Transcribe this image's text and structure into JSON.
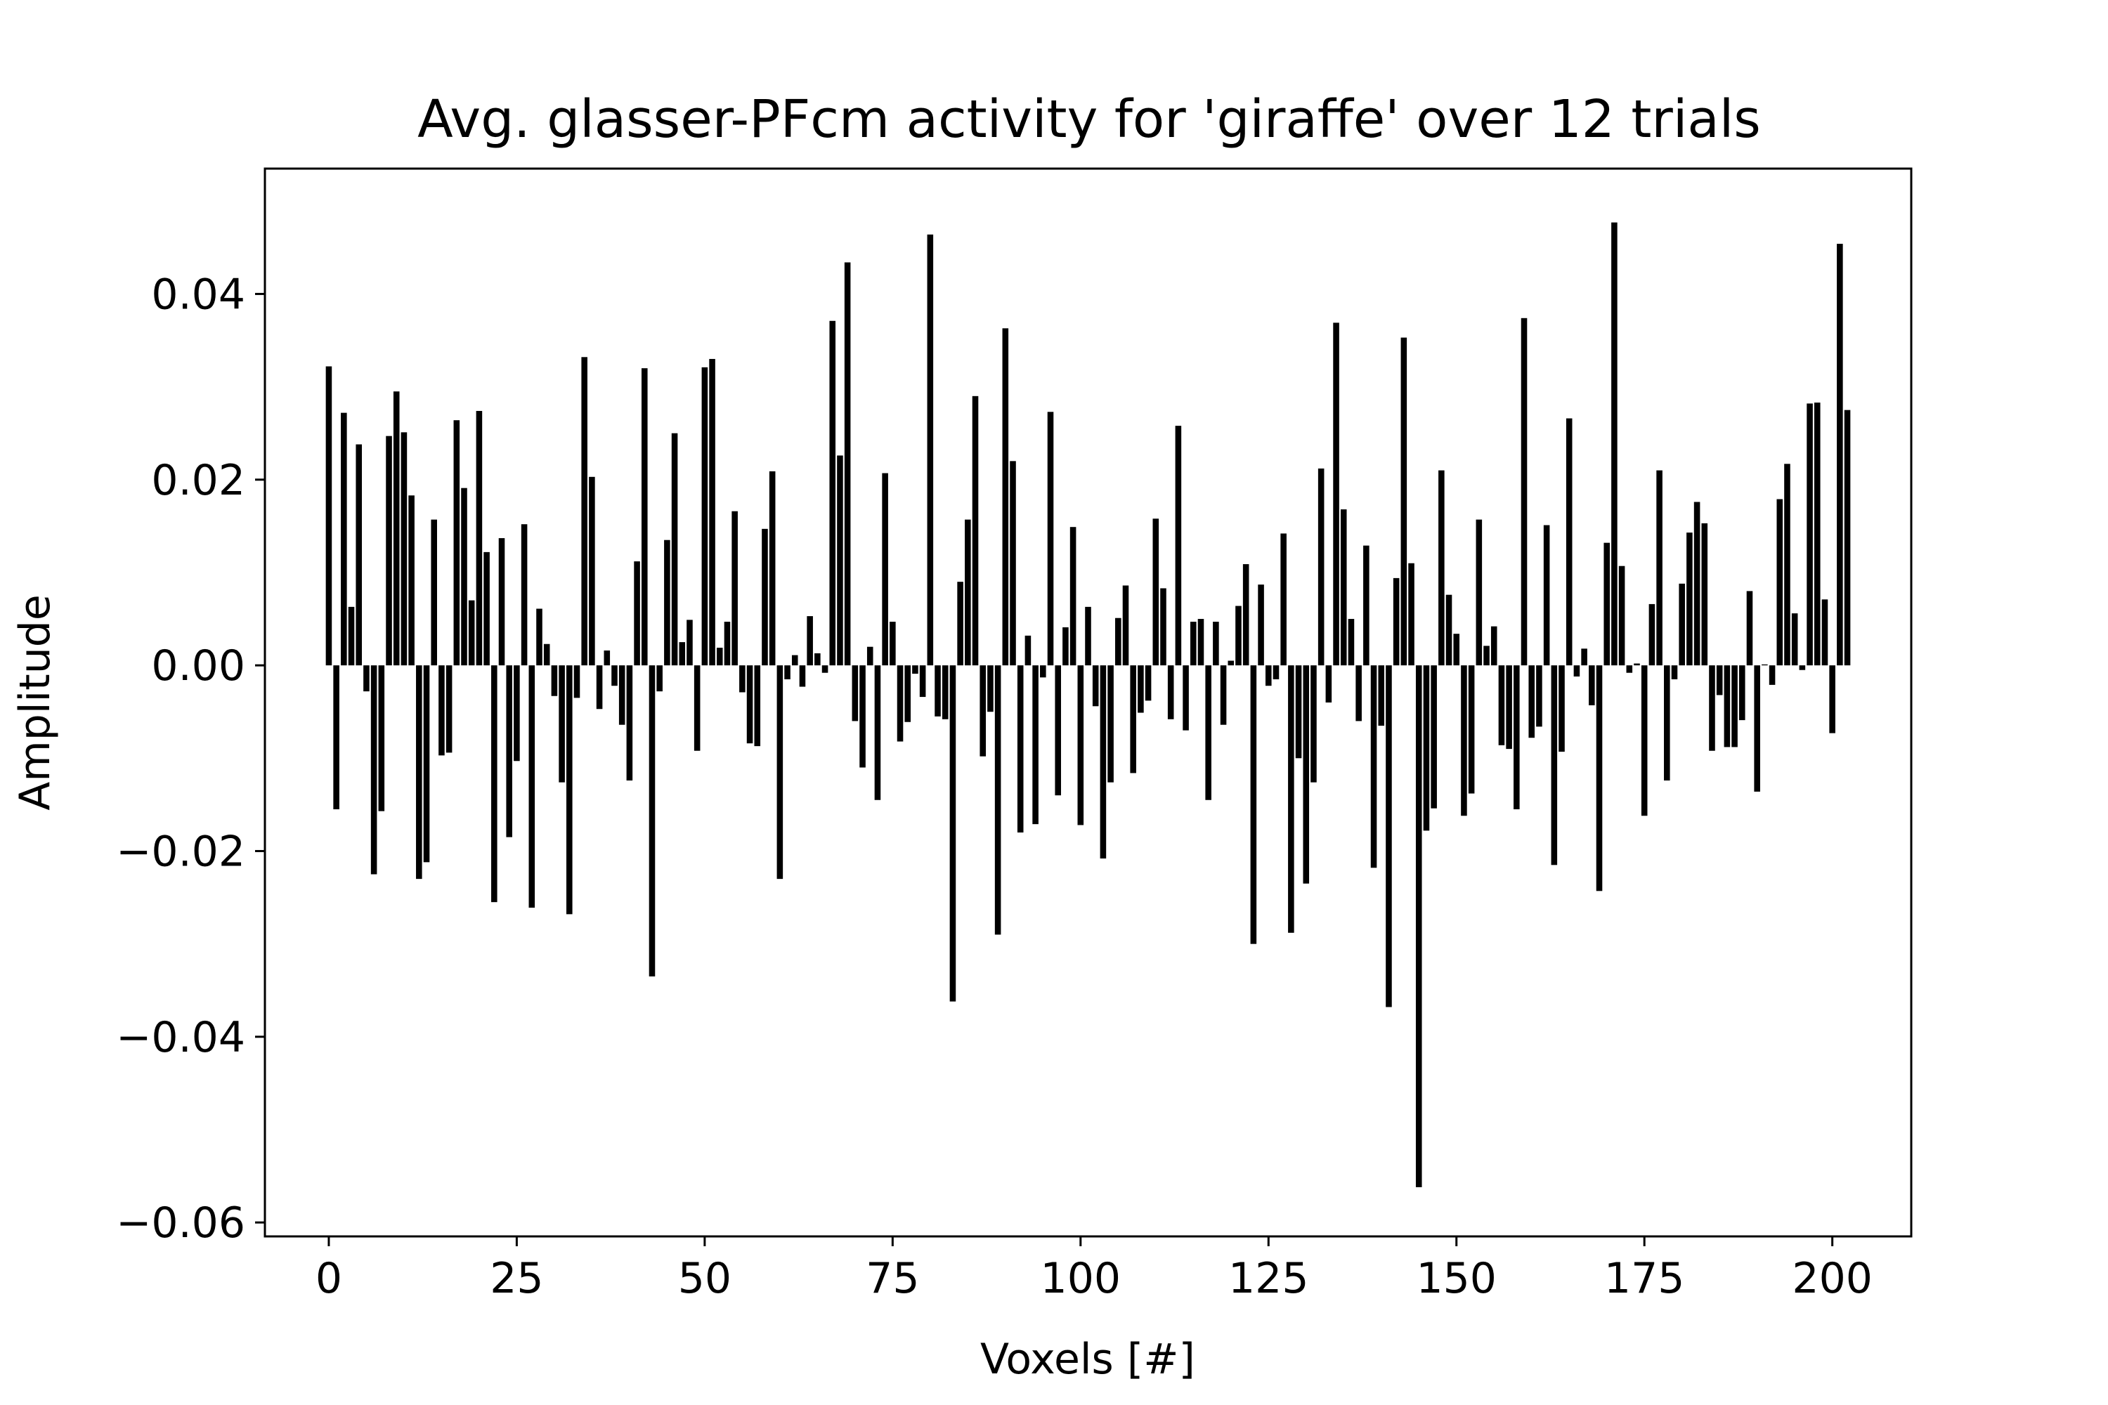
{
  "chart_data": {
    "type": "bar",
    "title": "Avg. glasser-PFcm activity for 'giraffe' over 12 trials",
    "xlabel": "Voxels [#]",
    "ylabel": "Amplitude",
    "xlim": [
      -8.5,
      210.5
    ],
    "ylim": [
      -0.0615,
      0.0535
    ],
    "x_ticks": [
      0,
      25,
      50,
      75,
      100,
      125,
      150,
      175,
      200
    ],
    "x_tick_labels": [
      "0",
      "25",
      "50",
      "75",
      "100",
      "125",
      "150",
      "175",
      "200"
    ],
    "y_ticks": [
      -0.06,
      -0.04,
      -0.02,
      0.0,
      0.02,
      0.04
    ],
    "y_tick_labels": [
      "−0.06",
      "−0.04",
      "−0.02",
      "0.00",
      "0.02",
      "0.04"
    ],
    "grid": false,
    "bar_color": "#000000",
    "values": [
      0.0322,
      -0.0155,
      0.0272,
      0.0063,
      0.0238,
      -0.0028,
      -0.0225,
      -0.0157,
      0.0247,
      0.0295,
      0.0251,
      0.0183,
      -0.023,
      -0.0212,
      0.0157,
      -0.0097,
      -0.0094,
      0.0264,
      0.0191,
      0.007,
      0.0274,
      0.0122,
      -0.0255,
      0.0137,
      -0.0185,
      -0.0103,
      0.0152,
      -0.0261,
      0.0061,
      0.0023,
      -0.0033,
      -0.0126,
      -0.0268,
      -0.0035,
      0.0332,
      0.0203,
      -0.0047,
      0.0016,
      -0.0022,
      -0.0064,
      -0.0124,
      0.0112,
      0.032,
      -0.0335,
      -0.0028,
      0.0135,
      0.025,
      0.0025,
      0.0049,
      -0.0092,
      0.0321,
      0.033,
      0.0019,
      0.0047,
      0.0166,
      -0.0029,
      -0.0084,
      -0.0087,
      0.0147,
      0.0209,
      -0.023,
      -0.0015,
      0.0011,
      -0.0023,
      0.0053,
      0.0013,
      -0.0008,
      0.0371,
      0.0226,
      0.0434,
      -0.006,
      -0.011,
      0.002,
      -0.0145,
      0.0207,
      0.0047,
      -0.0082,
      -0.0061,
      -0.0009,
      -0.0034,
      0.0464,
      -0.0055,
      -0.0058,
      -0.0362,
      0.009,
      0.0157,
      0.029,
      -0.0098,
      -0.005,
      -0.029,
      0.0363,
      0.022,
      -0.018,
      0.0032,
      -0.0171,
      -0.0013,
      0.0273,
      -0.014,
      0.0041,
      0.0149,
      -0.0172,
      0.0063,
      -0.0044,
      -0.0208,
      -0.0126,
      0.0051,
      0.0086,
      -0.0116,
      -0.0051,
      -0.0038,
      0.0158,
      0.0083,
      -0.0058,
      0.0258,
      -0.007,
      0.0047,
      0.005,
      -0.0145,
      0.0047,
      -0.0064,
      0.0005,
      0.0064,
      0.0109,
      -0.03,
      0.0087,
      -0.0022,
      -0.0015,
      0.0142,
      -0.0288,
      -0.01,
      -0.0235,
      -0.0126,
      0.0212,
      -0.004,
      0.0369,
      0.0168,
      0.005,
      -0.006,
      0.0129,
      -0.0218,
      -0.0065,
      -0.0368,
      0.0094,
      0.0353,
      0.011,
      -0.0562,
      -0.0178,
      -0.0154,
      0.021,
      0.0076,
      0.0034,
      -0.0162,
      -0.0138,
      0.0157,
      0.0021,
      0.0042,
      -0.0086,
      -0.009,
      -0.0155,
      0.0374,
      -0.0078,
      -0.0066,
      0.0151,
      -0.0215,
      -0.0093,
      0.0266,
      -0.0012,
      0.0018,
      -0.0043,
      -0.0243,
      0.0132,
      0.0477,
      0.0107,
      -0.0008,
      0.0002,
      -0.0162,
      0.0066,
      0.021,
      -0.0124,
      -0.0015,
      0.0088,
      0.0143,
      0.0176,
      0.0153,
      -0.0092,
      -0.0032,
      -0.0088,
      -0.0088,
      -0.0059,
      0.008,
      -0.0136,
      0.0001,
      -0.0021,
      0.0179,
      0.0217,
      0.0056,
      -0.0005,
      0.0282,
      0.0283,
      0.0071,
      -0.0073,
      0.0454,
      0.0275
    ]
  }
}
